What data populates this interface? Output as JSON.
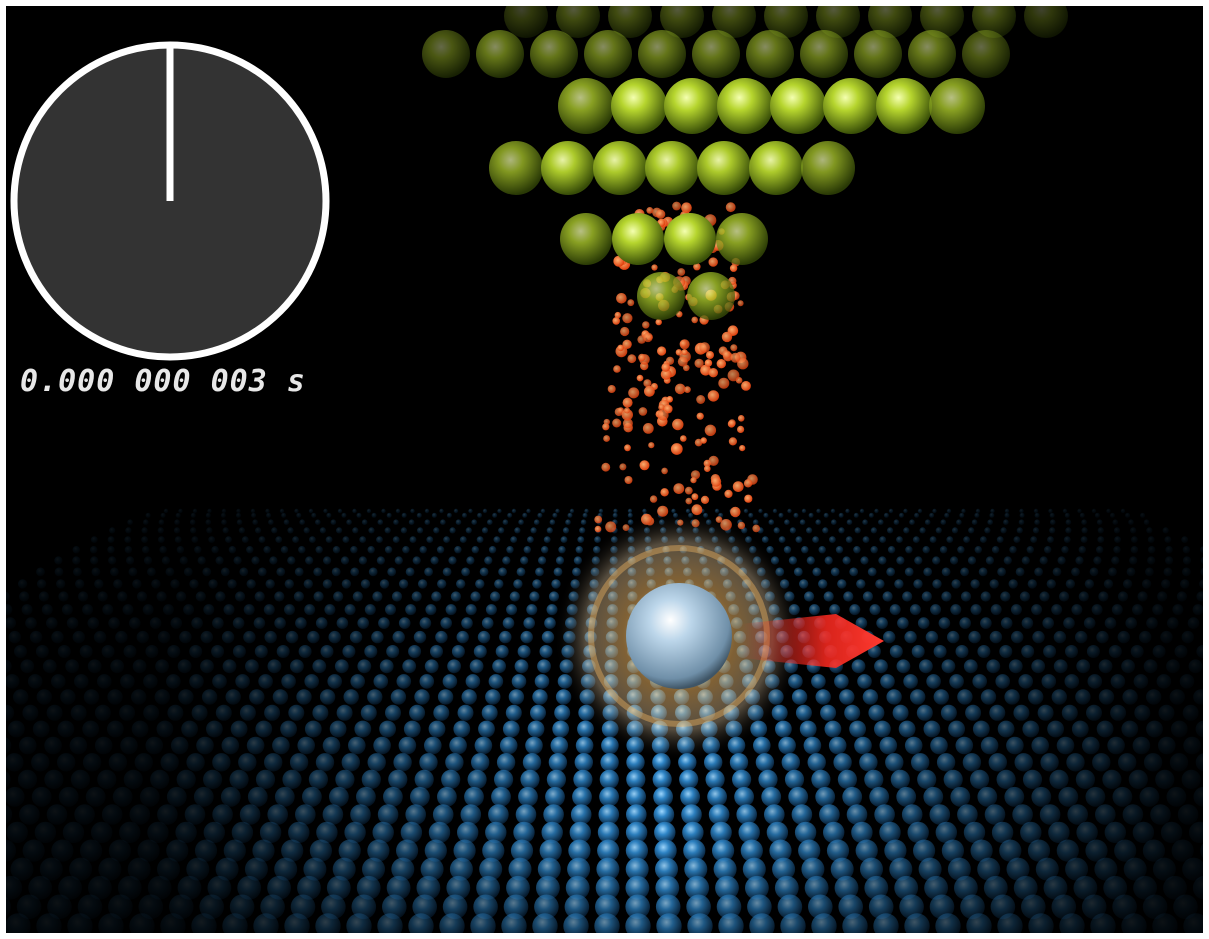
{
  "timer": {
    "label": "0.000 000 003 s",
    "hand_fraction": 0.0,
    "dial_color": "#333333",
    "rim_color": "#ffffff",
    "text_color": "#e8e8e8"
  },
  "scene": {
    "background": "#000000",
    "tip_atom_color": "#9ecb1f",
    "particle_color": "#ff5a1a",
    "surface_atom_color": "#2f86c8",
    "single_atom_color": "#a9c8e2",
    "arrow_color": "#ff2a20"
  }
}
